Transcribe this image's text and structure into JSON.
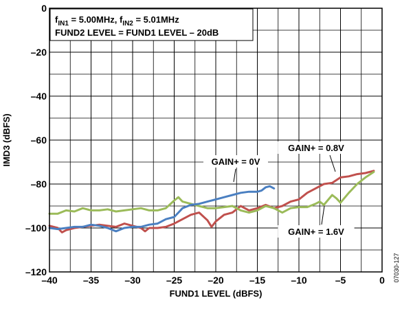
{
  "chart_data": {
    "type": "line",
    "xlabel": "FUND1 LEVEL (dBFS)",
    "ylabel": "IMD3 (dBFS)",
    "xlim": [
      -40,
      0
    ],
    "ylim": [
      -120,
      0
    ],
    "x_ticks": [
      -40,
      -35,
      -30,
      -25,
      -20,
      -15,
      -10,
      -5,
      0
    ],
    "x_tick_labels": [
      "–40",
      "–35",
      "–30",
      "–25",
      "–20",
      "–15",
      "–10",
      "–5",
      "0"
    ],
    "y_ticks": [
      0,
      -20,
      -40,
      -60,
      -80,
      -100,
      -120
    ],
    "y_tick_labels": [
      "0",
      "–20",
      "–40",
      "–60",
      "–80",
      "–100",
      "–120"
    ],
    "grid": true,
    "annotation_lines": {
      "line1": {
        "f": "f",
        "sub1": "IN1",
        "mid": " = 5.00MHz, f",
        "sub2": "IN2",
        "end": " = 5.01MHz"
      },
      "line2": "FUND2 LEVEL = FUND1 LEVEL – 20dB"
    },
    "figure_id": "07030-127",
    "series": [
      {
        "label": "GAIN+ = 0V",
        "color": "#4a7fc1",
        "x": [
          -40,
          -39,
          -38,
          -37,
          -36,
          -35,
          -34,
          -33,
          -32,
          -31,
          -30,
          -29,
          -28,
          -27,
          -26,
          -25,
          -24.5,
          -24,
          -23,
          -22,
          -21,
          -20,
          -19,
          -18,
          -17,
          -16,
          -15,
          -14.5,
          -14,
          -13.5,
          -13
        ],
        "y": [
          -100,
          -100.5,
          -100,
          -99.5,
          -99.5,
          -98.5,
          -99,
          -100,
          -101.5,
          -100,
          -99.5,
          -99.5,
          -98.5,
          -98,
          -96,
          -95,
          -93,
          -91,
          -89.5,
          -89,
          -88,
          -87,
          -86,
          -85,
          -84,
          -83.5,
          -83.5,
          -83,
          -81.5,
          -81,
          -82
        ]
      },
      {
        "label": "GAIN+ = 0.8V",
        "color": "#c0504d",
        "x": [
          -40,
          -39,
          -38.5,
          -38,
          -37,
          -36,
          -35,
          -34,
          -33,
          -32,
          -31,
          -30,
          -29,
          -28.5,
          -28,
          -27,
          -26,
          -25,
          -24,
          -23,
          -22,
          -21,
          -20.5,
          -20,
          -19,
          -18,
          -17,
          -16,
          -15,
          -14,
          -13,
          -12,
          -11,
          -10,
          -9,
          -8,
          -7,
          -6,
          -5,
          -4,
          -3,
          -2,
          -1
        ],
        "y": [
          -99,
          -100,
          -102,
          -101,
          -100,
          -99.5,
          -99,
          -98.5,
          -99,
          -99.5,
          -98,
          -99,
          -100,
          -101.5,
          -100,
          -100,
          -99.5,
          -98,
          -96,
          -94,
          -93,
          -96.5,
          -99.5,
          -97,
          -94,
          -93,
          -90,
          -92,
          -91,
          -89.5,
          -91,
          -90,
          -88,
          -87,
          -84,
          -82,
          -80,
          -79.5,
          -77,
          -76.5,
          -75.5,
          -75,
          -74
        ]
      },
      {
        "label": "GAIN+ = 1.6V",
        "color": "#9bbb59",
        "x": [
          -40,
          -39,
          -38,
          -37,
          -36,
          -35,
          -34,
          -33,
          -32,
          -31,
          -30,
          -29,
          -28,
          -27,
          -26,
          -25,
          -24.5,
          -24,
          -23,
          -22,
          -21,
          -20,
          -19,
          -18,
          -17,
          -16,
          -15,
          -14,
          -13,
          -12,
          -11,
          -10,
          -9,
          -8,
          -7.5,
          -7,
          -6,
          -5.5,
          -5,
          -4,
          -3,
          -2,
          -1
        ],
        "y": [
          -93.5,
          -93.5,
          -92,
          -92.5,
          -91,
          -92,
          -92,
          -91.5,
          -92.5,
          -92,
          -91.5,
          -91,
          -92,
          -92,
          -91,
          -87.5,
          -86,
          -88,
          -89,
          -90,
          -91,
          -91,
          -90.5,
          -90,
          -92,
          -93,
          -92,
          -90,
          -91,
          -93,
          -91,
          -90.5,
          -90.5,
          -89,
          -88,
          -89.5,
          -85,
          -86.5,
          -88.5,
          -84,
          -80,
          -77,
          -74.5
        ]
      }
    ]
  }
}
